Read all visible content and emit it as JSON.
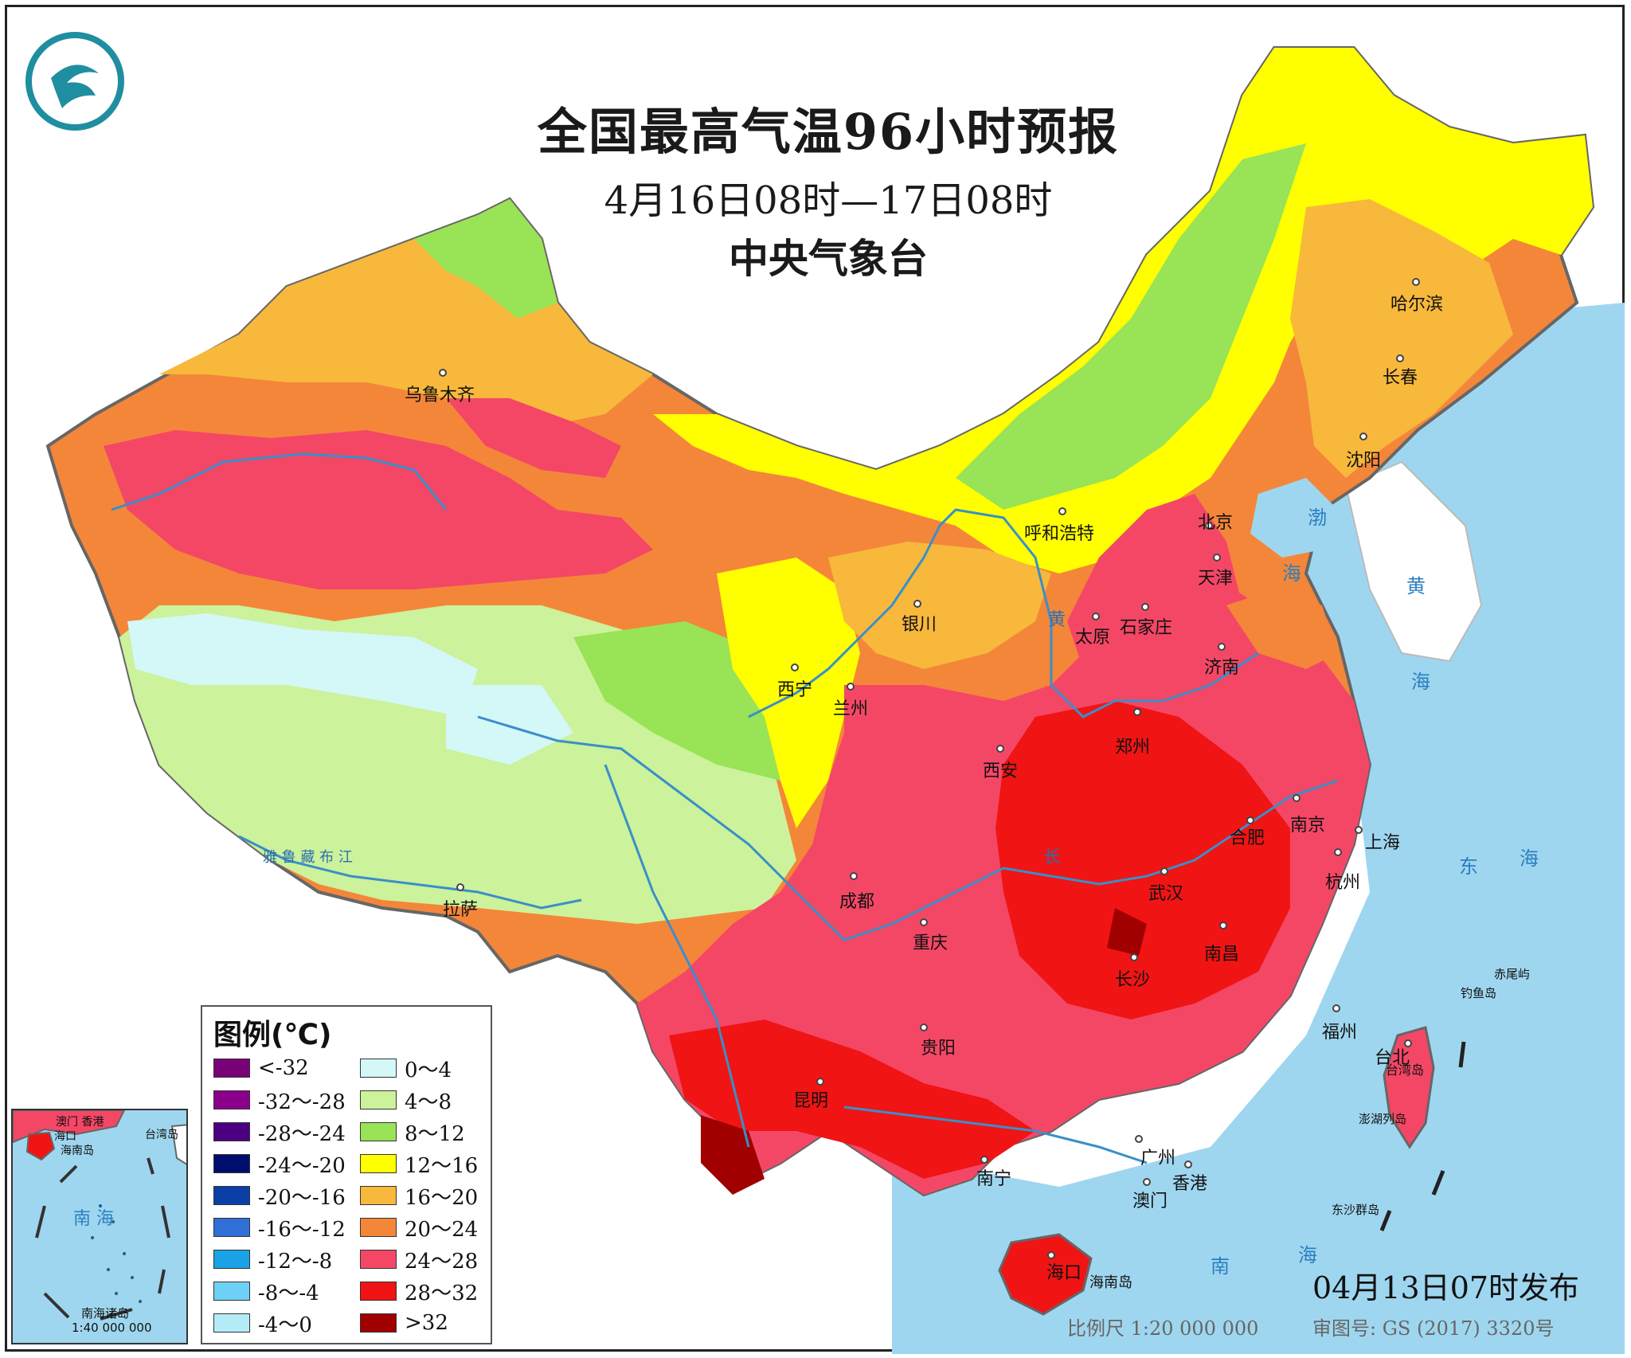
{
  "header": {
    "title": "全国最高气温96小时预报",
    "period": "4月16日08时—17日08时",
    "issuer": "中央气象台"
  },
  "legend": {
    "title": "图例(℃)",
    "items": [
      {
        "label": "<-32",
        "color": "#7a0078"
      },
      {
        "label": "-32～-28",
        "color": "#8b008b"
      },
      {
        "label": "-28～-24",
        "color": "#4b0082"
      },
      {
        "label": "-24～-20",
        "color": "#000e6e"
      },
      {
        "label": "-20～-16",
        "color": "#0b3fa8"
      },
      {
        "label": "-16～-12",
        "color": "#2f6fd6"
      },
      {
        "label": "-12～-8",
        "color": "#1aa3e6"
      },
      {
        "label": "-8～-4",
        "color": "#6fd0f5"
      },
      {
        "label": "-4～0",
        "color": "#b3ecf7"
      },
      {
        "label": "0～4",
        "color": "#d4f7f7"
      },
      {
        "label": "4～8",
        "color": "#ccf29b"
      },
      {
        "label": "8～12",
        "color": "#98e356"
      },
      {
        "label": "12～16",
        "color": "#ffff00"
      },
      {
        "label": "16～20",
        "color": "#f7b83c"
      },
      {
        "label": "20～24",
        "color": "#f4863a"
      },
      {
        "label": "24～28",
        "color": "#f44766"
      },
      {
        "label": "28～32",
        "color": "#f01414"
      },
      {
        "label": ">32",
        "color": "#a00000"
      }
    ]
  },
  "cities": [
    {
      "name": "乌鲁木齐"
    },
    {
      "name": "哈尔滨"
    },
    {
      "name": "长春"
    },
    {
      "name": "沈阳"
    },
    {
      "name": "北京"
    },
    {
      "name": "天津"
    },
    {
      "name": "呼和浩特"
    },
    {
      "name": "石家庄"
    },
    {
      "name": "太原"
    },
    {
      "name": "济南"
    },
    {
      "name": "银川"
    },
    {
      "name": "西宁"
    },
    {
      "name": "兰州"
    },
    {
      "name": "郑州"
    },
    {
      "name": "西安"
    },
    {
      "name": "合肥"
    },
    {
      "name": "南京"
    },
    {
      "name": "上海"
    },
    {
      "name": "杭州"
    },
    {
      "name": "武汉"
    },
    {
      "name": "成都"
    },
    {
      "name": "重庆"
    },
    {
      "name": "拉萨"
    },
    {
      "name": "南昌"
    },
    {
      "name": "长沙"
    },
    {
      "name": "福州"
    },
    {
      "name": "台北"
    },
    {
      "name": "贵阳"
    },
    {
      "name": "昆明"
    },
    {
      "name": "南宁"
    },
    {
      "name": "广州"
    },
    {
      "name": "香港"
    },
    {
      "name": "澳门"
    },
    {
      "name": "海口"
    }
  ],
  "map_labels": {
    "bohai": "渤",
    "bohai2": "海",
    "yellow_sea": "黄",
    "yellow_sea2": "海",
    "east_sea": "东",
    "east_sea2": "海",
    "south_sea": "南",
    "south_sea2": "海",
    "hainan_island": "海南岛",
    "taiwan_island": "台湾岛",
    "chiwei": "赤尾屿",
    "diaoyu": "钓鱼岛",
    "penghu": "澎湖列岛",
    "dongsha": "东沙群岛",
    "huanghe": "黄",
    "changjiang": "长",
    "yarlung": "雅 鲁 藏 布 江"
  },
  "inset": {
    "south_sea": "南 海",
    "islands": "南海诸岛",
    "scale": "1:40 000 000",
    "macau_hk": "澳门 香港",
    "haikou": "海口",
    "hainan": "海南岛",
    "taiwan": "台湾岛"
  },
  "footer": {
    "published": "04月13日07时发布",
    "scale": "比例尺 1:20 000 000",
    "review": "审图号: GS (2017) 3320号"
  }
}
